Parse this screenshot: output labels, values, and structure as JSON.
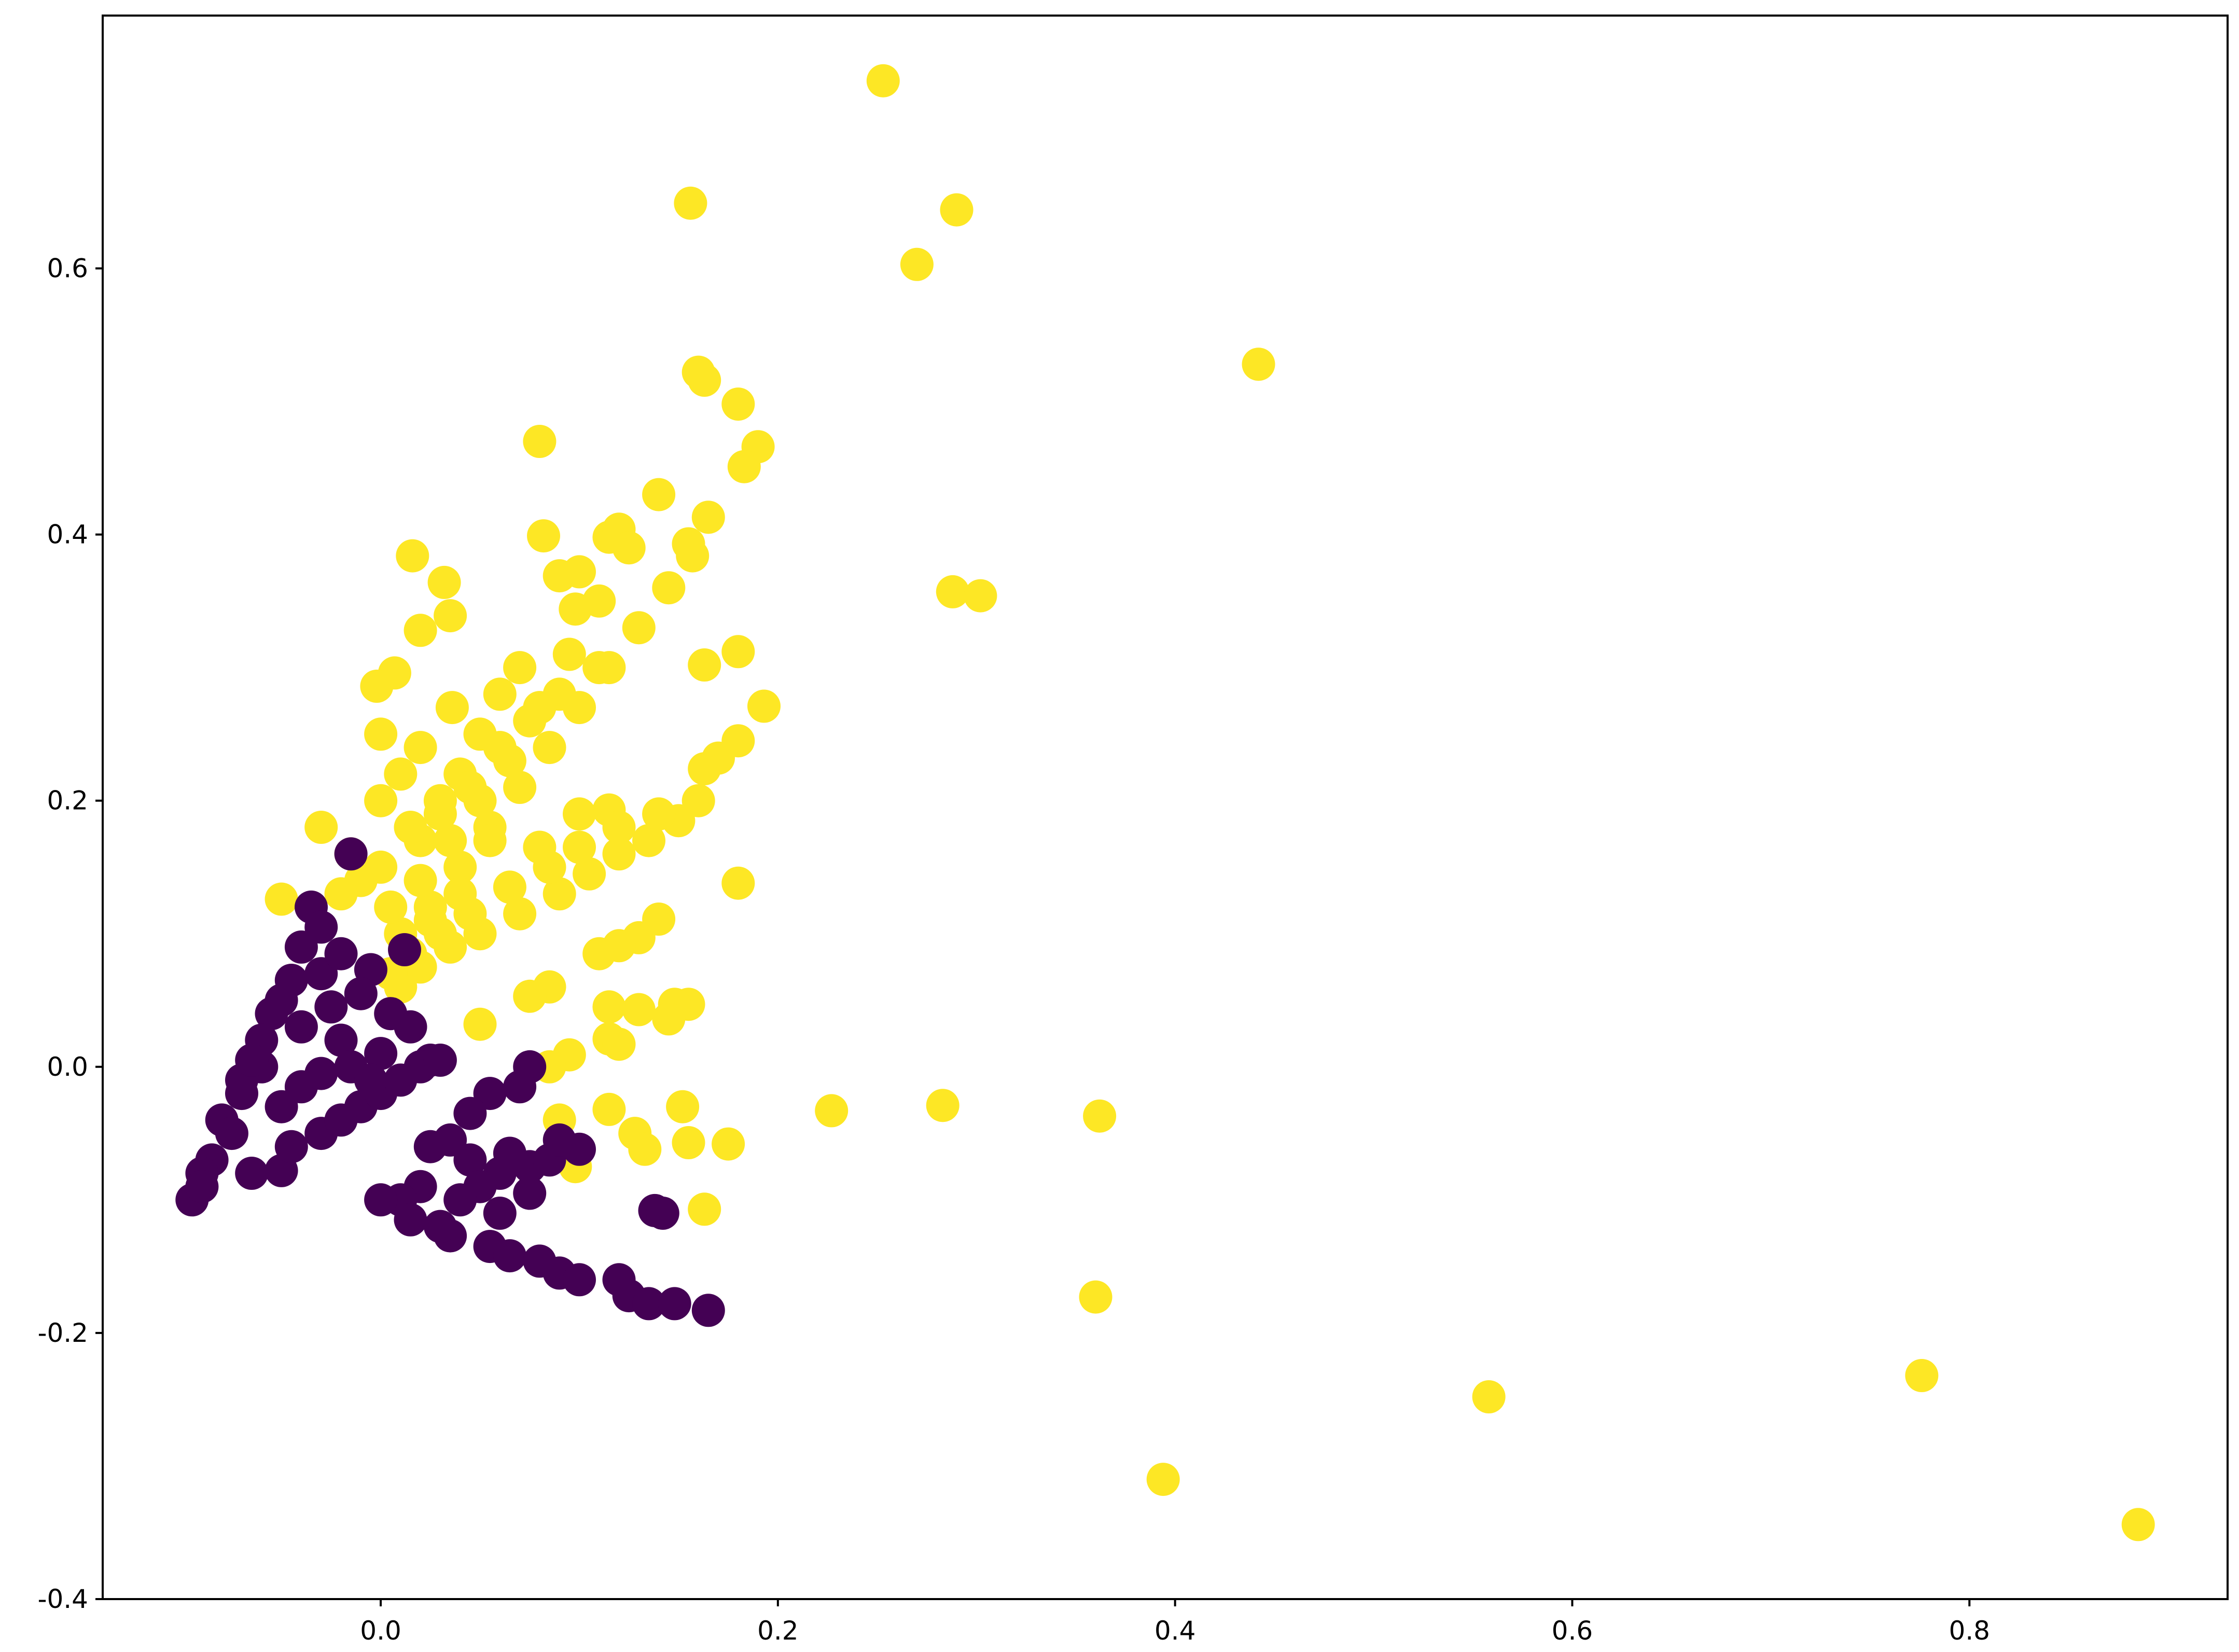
{
  "colors": {
    "cluster_0": "#440154",
    "cluster_1": "#fde725",
    "frame": "#000000",
    "background": "#ffffff"
  },
  "chart_data": {
    "type": "scatter",
    "title": "",
    "xlabel": "",
    "ylabel": "",
    "xlim": [
      -0.14,
      0.93
    ],
    "ylim": [
      -0.4,
      0.79
    ],
    "grid": false,
    "legend": "none",
    "x_ticks": [
      {
        "value": 0.0,
        "label": "0.0"
      },
      {
        "value": 0.2,
        "label": "0.2"
      },
      {
        "value": 0.4,
        "label": "0.4"
      },
      {
        "value": 0.6,
        "label": "0.6"
      },
      {
        "value": 0.8,
        "label": "0.8"
      }
    ],
    "y_ticks": [
      {
        "value": -0.4,
        "label": "-0.4"
      },
      {
        "value": -0.2,
        "label": "-0.2"
      },
      {
        "value": 0.0,
        "label": "0.0"
      },
      {
        "value": 0.2,
        "label": "0.2"
      },
      {
        "value": 0.4,
        "label": "0.4"
      },
      {
        "value": 0.6,
        "label": "0.6"
      }
    ],
    "series": [
      {
        "color_key": "cluster_1",
        "points": [
          [
            0.253,
            0.741
          ],
          [
            0.156,
            0.649
          ],
          [
            0.29,
            0.644
          ],
          [
            0.27,
            0.603
          ],
          [
            0.442,
            0.528
          ],
          [
            0.16,
            0.522
          ],
          [
            0.163,
            0.516
          ],
          [
            0.18,
            0.498
          ],
          [
            0.19,
            0.466
          ],
          [
            0.183,
            0.451
          ],
          [
            0.08,
            0.47
          ],
          [
            0.165,
            0.413
          ],
          [
            0.155,
            0.393
          ],
          [
            0.157,
            0.384
          ],
          [
            0.082,
            0.399
          ],
          [
            0.115,
            0.398
          ],
          [
            0.12,
            0.404
          ],
          [
            0.016,
            0.384
          ],
          [
            0.032,
            0.364
          ],
          [
            0.1,
            0.372
          ],
          [
            0.09,
            0.369
          ],
          [
            0.288,
            0.357
          ],
          [
            0.302,
            0.354
          ],
          [
            0.098,
            0.344
          ],
          [
            0.035,
            0.339
          ],
          [
            0.02,
            0.328
          ],
          [
            0.18,
            0.312
          ],
          [
            0.163,
            0.302
          ],
          [
            0.193,
            0.271
          ],
          [
            0.036,
            0.27
          ],
          [
            0.007,
            0.296
          ],
          [
            -0.002,
            0.286
          ],
          [
            0.18,
            0.245
          ],
          [
            0.17,
            0.232
          ],
          [
            0.163,
            0.224
          ],
          [
            0.115,
            0.193
          ],
          [
            0.1,
            0.19
          ],
          [
            0.08,
            0.165
          ],
          [
            0.18,
            0.138
          ],
          [
            -0.05,
            0.126
          ],
          [
            0.14,
            0.111
          ],
          [
            0.13,
            0.097
          ],
          [
            0.12,
            0.091
          ],
          [
            0.11,
            0.085
          ],
          [
            0.085,
            0.06
          ],
          [
            0.075,
            0.053
          ],
          [
            0.05,
            0.032
          ],
          [
            0.155,
            0.047
          ],
          [
            0.148,
            0.047
          ],
          [
            0.145,
            0.036
          ],
          [
            0.13,
            0.043
          ],
          [
            0.115,
            0.045
          ],
          [
            0.095,
            0.009
          ],
          [
            0.085,
            0.0
          ],
          [
            0.115,
            0.021
          ],
          [
            0.12,
            0.017
          ],
          [
            0.227,
            -0.033
          ],
          [
            0.283,
            -0.029
          ],
          [
            0.362,
            -0.037
          ],
          [
            0.152,
            -0.03
          ],
          [
            0.155,
            -0.057
          ],
          [
            0.175,
            -0.058
          ],
          [
            0.115,
            -0.032
          ],
          [
            0.128,
            -0.05
          ],
          [
            0.133,
            -0.062
          ],
          [
            0.09,
            -0.04
          ],
          [
            0.098,
            -0.075
          ],
          [
            0.163,
            -0.107
          ],
          [
            0.36,
            -0.173
          ],
          [
            0.558,
            -0.248
          ],
          [
            0.776,
            -0.232
          ],
          [
            0.394,
            -0.31
          ],
          [
            0.885,
            -0.344
          ],
          [
            0.15,
            0.185
          ],
          [
            0.135,
            0.17
          ],
          [
            0.12,
            0.16
          ],
          [
            0.105,
            0.145
          ],
          [
            0.09,
            0.13
          ],
          [
            0.07,
            0.115
          ],
          [
            0.05,
            0.1
          ],
          [
            0.035,
            0.09
          ],
          [
            0.02,
            0.075
          ],
          [
            0.01,
            0.06
          ],
          [
            0.145,
            0.36
          ],
          [
            0.13,
            0.33
          ],
          [
            0.115,
            0.3
          ],
          [
            0.1,
            0.27
          ],
          [
            0.085,
            0.24
          ],
          [
            0.07,
            0.21
          ],
          [
            0.055,
            0.18
          ],
          [
            0.04,
            0.15
          ],
          [
            0.025,
            0.12
          ],
          [
            0.01,
            0.1
          ],
          [
            0.14,
            0.43
          ],
          [
            0.125,
            0.39
          ],
          [
            0.11,
            0.35
          ],
          [
            0.095,
            0.31
          ],
          [
            0.08,
            0.27
          ],
          [
            0.065,
            0.23
          ],
          [
            0.05,
            0.2
          ],
          [
            0.035,
            0.17
          ],
          [
            0.02,
            0.14
          ],
          [
            0.005,
            0.12
          ],
          [
            0.07,
            0.3
          ],
          [
            0.06,
            0.28
          ],
          [
            0.05,
            0.25
          ],
          [
            0.04,
            0.22
          ],
          [
            0.03,
            0.19
          ],
          [
            0.02,
            0.17
          ],
          [
            0.0,
            0.15
          ],
          [
            -0.01,
            0.14
          ],
          [
            -0.02,
            0.13
          ],
          [
            -0.03,
            0.18
          ],
          [
            -0.015,
            0.16
          ],
          [
            0.0,
            0.2
          ],
          [
            0.01,
            0.22
          ],
          [
            0.02,
            0.24
          ],
          [
            0.0,
            0.25
          ],
          [
            0.16,
            0.2
          ],
          [
            0.14,
            0.19
          ],
          [
            0.12,
            0.18
          ],
          [
            0.1,
            0.165
          ],
          [
            0.085,
            0.15
          ],
          [
            0.065,
            0.135
          ],
          [
            0.045,
            0.115
          ],
          [
            0.03,
            0.1
          ],
          [
            0.015,
            0.085
          ],
          [
            0.005,
            0.07
          ],
          [
            0.09,
            0.28
          ],
          [
            0.11,
            0.3
          ],
          [
            0.075,
            0.26
          ],
          [
            0.06,
            0.24
          ],
          [
            0.045,
            0.21
          ],
          [
            0.03,
            0.2
          ],
          [
            0.015,
            0.18
          ],
          [
            0.055,
            0.17
          ],
          [
            0.04,
            0.13
          ],
          [
            0.025,
            0.11
          ]
        ]
      },
      {
        "color_key": "cluster_0",
        "points": [
          [
            -0.015,
            0.16
          ],
          [
            -0.035,
            0.12
          ],
          [
            -0.03,
            0.105
          ],
          [
            0.012,
            0.088
          ],
          [
            -0.005,
            0.073
          ],
          [
            -0.045,
            0.065
          ],
          [
            -0.055,
            0.04
          ],
          [
            -0.04,
            0.03
          ],
          [
            -0.02,
            0.02
          ],
          [
            0.0,
            0.01
          ],
          [
            0.015,
            0.03
          ],
          [
            0.025,
            0.005
          ],
          [
            -0.06,
            0.0
          ],
          [
            -0.07,
            -0.02
          ],
          [
            -0.08,
            -0.04
          ],
          [
            -0.075,
            -0.05
          ],
          [
            -0.085,
            -0.07
          ],
          [
            -0.09,
            -0.08
          ],
          [
            -0.095,
            -0.1
          ],
          [
            -0.09,
            -0.09
          ],
          [
            -0.065,
            -0.08
          ],
          [
            -0.05,
            -0.078
          ],
          [
            -0.045,
            -0.06
          ],
          [
            -0.03,
            -0.05
          ],
          [
            -0.02,
            -0.04
          ],
          [
            -0.01,
            -0.03
          ],
          [
            0.0,
            -0.02
          ],
          [
            0.01,
            -0.01
          ],
          [
            0.02,
            0.0
          ],
          [
            0.03,
            0.005
          ],
          [
            -0.05,
            -0.03
          ],
          [
            -0.04,
            -0.015
          ],
          [
            -0.03,
            -0.005
          ],
          [
            -0.06,
            0.02
          ],
          [
            -0.05,
            0.05
          ],
          [
            -0.03,
            0.07
          ],
          [
            -0.02,
            0.085
          ],
          [
            -0.04,
            0.09
          ],
          [
            -0.025,
            0.045
          ],
          [
            -0.01,
            0.055
          ],
          [
            0.005,
            0.04
          ],
          [
            -0.015,
            0.0
          ],
          [
            -0.005,
            -0.01
          ],
          [
            -0.07,
            -0.01
          ],
          [
            -0.065,
            0.005
          ],
          [
            0.075,
            0.0
          ],
          [
            0.07,
            -0.015
          ],
          [
            0.055,
            -0.02
          ],
          [
            0.045,
            -0.035
          ],
          [
            0.035,
            -0.055
          ],
          [
            0.025,
            -0.06
          ],
          [
            0.045,
            -0.07
          ],
          [
            0.06,
            -0.08
          ],
          [
            0.075,
            -0.075
          ],
          [
            0.085,
            -0.07
          ],
          [
            0.1,
            -0.062
          ],
          [
            0.09,
            -0.055
          ],
          [
            0.065,
            -0.065
          ],
          [
            0.05,
            -0.09
          ],
          [
            0.04,
            -0.1
          ],
          [
            0.02,
            -0.09
          ],
          [
            0.01,
            -0.1
          ],
          [
            0.0,
            -0.1
          ],
          [
            0.015,
            -0.115
          ],
          [
            0.035,
            -0.127
          ],
          [
            0.055,
            -0.135
          ],
          [
            0.065,
            -0.142
          ],
          [
            0.08,
            -0.146
          ],
          [
            0.09,
            -0.155
          ],
          [
            0.1,
            -0.16
          ],
          [
            0.12,
            -0.16
          ],
          [
            0.125,
            -0.172
          ],
          [
            0.135,
            -0.178
          ],
          [
            0.148,
            -0.178
          ],
          [
            0.165,
            -0.183
          ],
          [
            0.138,
            -0.108
          ],
          [
            0.142,
            -0.11
          ],
          [
            0.075,
            -0.095
          ],
          [
            0.06,
            -0.11
          ],
          [
            0.03,
            -0.12
          ]
        ]
      }
    ]
  }
}
